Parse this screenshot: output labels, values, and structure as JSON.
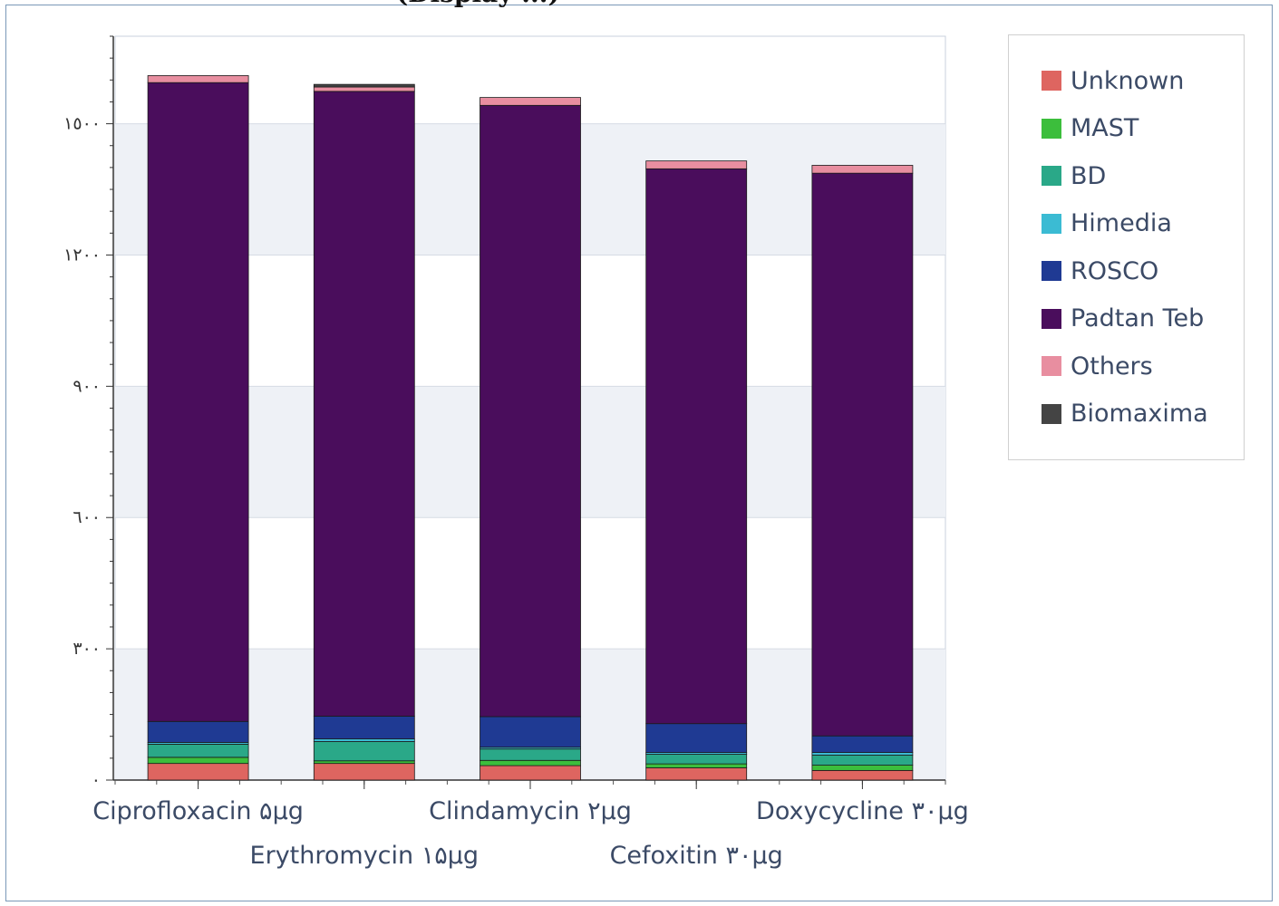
{
  "chart_data": {
    "type": "bar",
    "stacked": true,
    "title": "",
    "xlabel": "",
    "ylabel": "",
    "ylim": [
      0,
      1700
    ],
    "yticks": [
      0,
      300,
      600,
      900,
      1200,
      1500
    ],
    "ytick_labels": [
      "٠",
      "٣٠٠",
      "٦٠٠",
      "٩٠٠",
      "١٢٠٠",
      "١٥٠٠"
    ],
    "categories": [
      "Ciprofloxacin ۵µg",
      "Erythromycin ۱۵µg",
      "Clindamycin ۲µg",
      "Cefoxitin ۳۰µg",
      "Doxycycline ۳۰µg"
    ],
    "grid": "horizontal bands",
    "legend_position": "right",
    "series": [
      {
        "name": "Unknown",
        "color": "#de6560",
        "values": [
          38,
          38,
          33,
          28,
          22
        ]
      },
      {
        "name": "MAST",
        "color": "#3cbe3c",
        "values": [
          14,
          6,
          12,
          9,
          12
        ]
      },
      {
        "name": "BD",
        "color": "#2aa888",
        "values": [
          30,
          44,
          26,
          22,
          23
        ]
      },
      {
        "name": "Himedia",
        "color": "#3bbbd3",
        "values": [
          4,
          6,
          4,
          4,
          6
        ]
      },
      {
        "name": "ROSCO",
        "color": "#1f3a93",
        "values": [
          48,
          52,
          70,
          66,
          38
        ]
      },
      {
        "name": "Padtan Teb",
        "color": "#4a0d5c",
        "values": [
          1460,
          1428,
          1397,
          1268,
          1286
        ]
      },
      {
        "name": "Others",
        "color": "#e88ea0",
        "values": [
          16,
          10,
          18,
          18,
          18
        ]
      },
      {
        "name": "Biomaxima",
        "color": "#444444",
        "values": [
          0,
          6,
          0,
          0,
          0
        ]
      }
    ]
  },
  "header_fragment": "(Display ...)"
}
